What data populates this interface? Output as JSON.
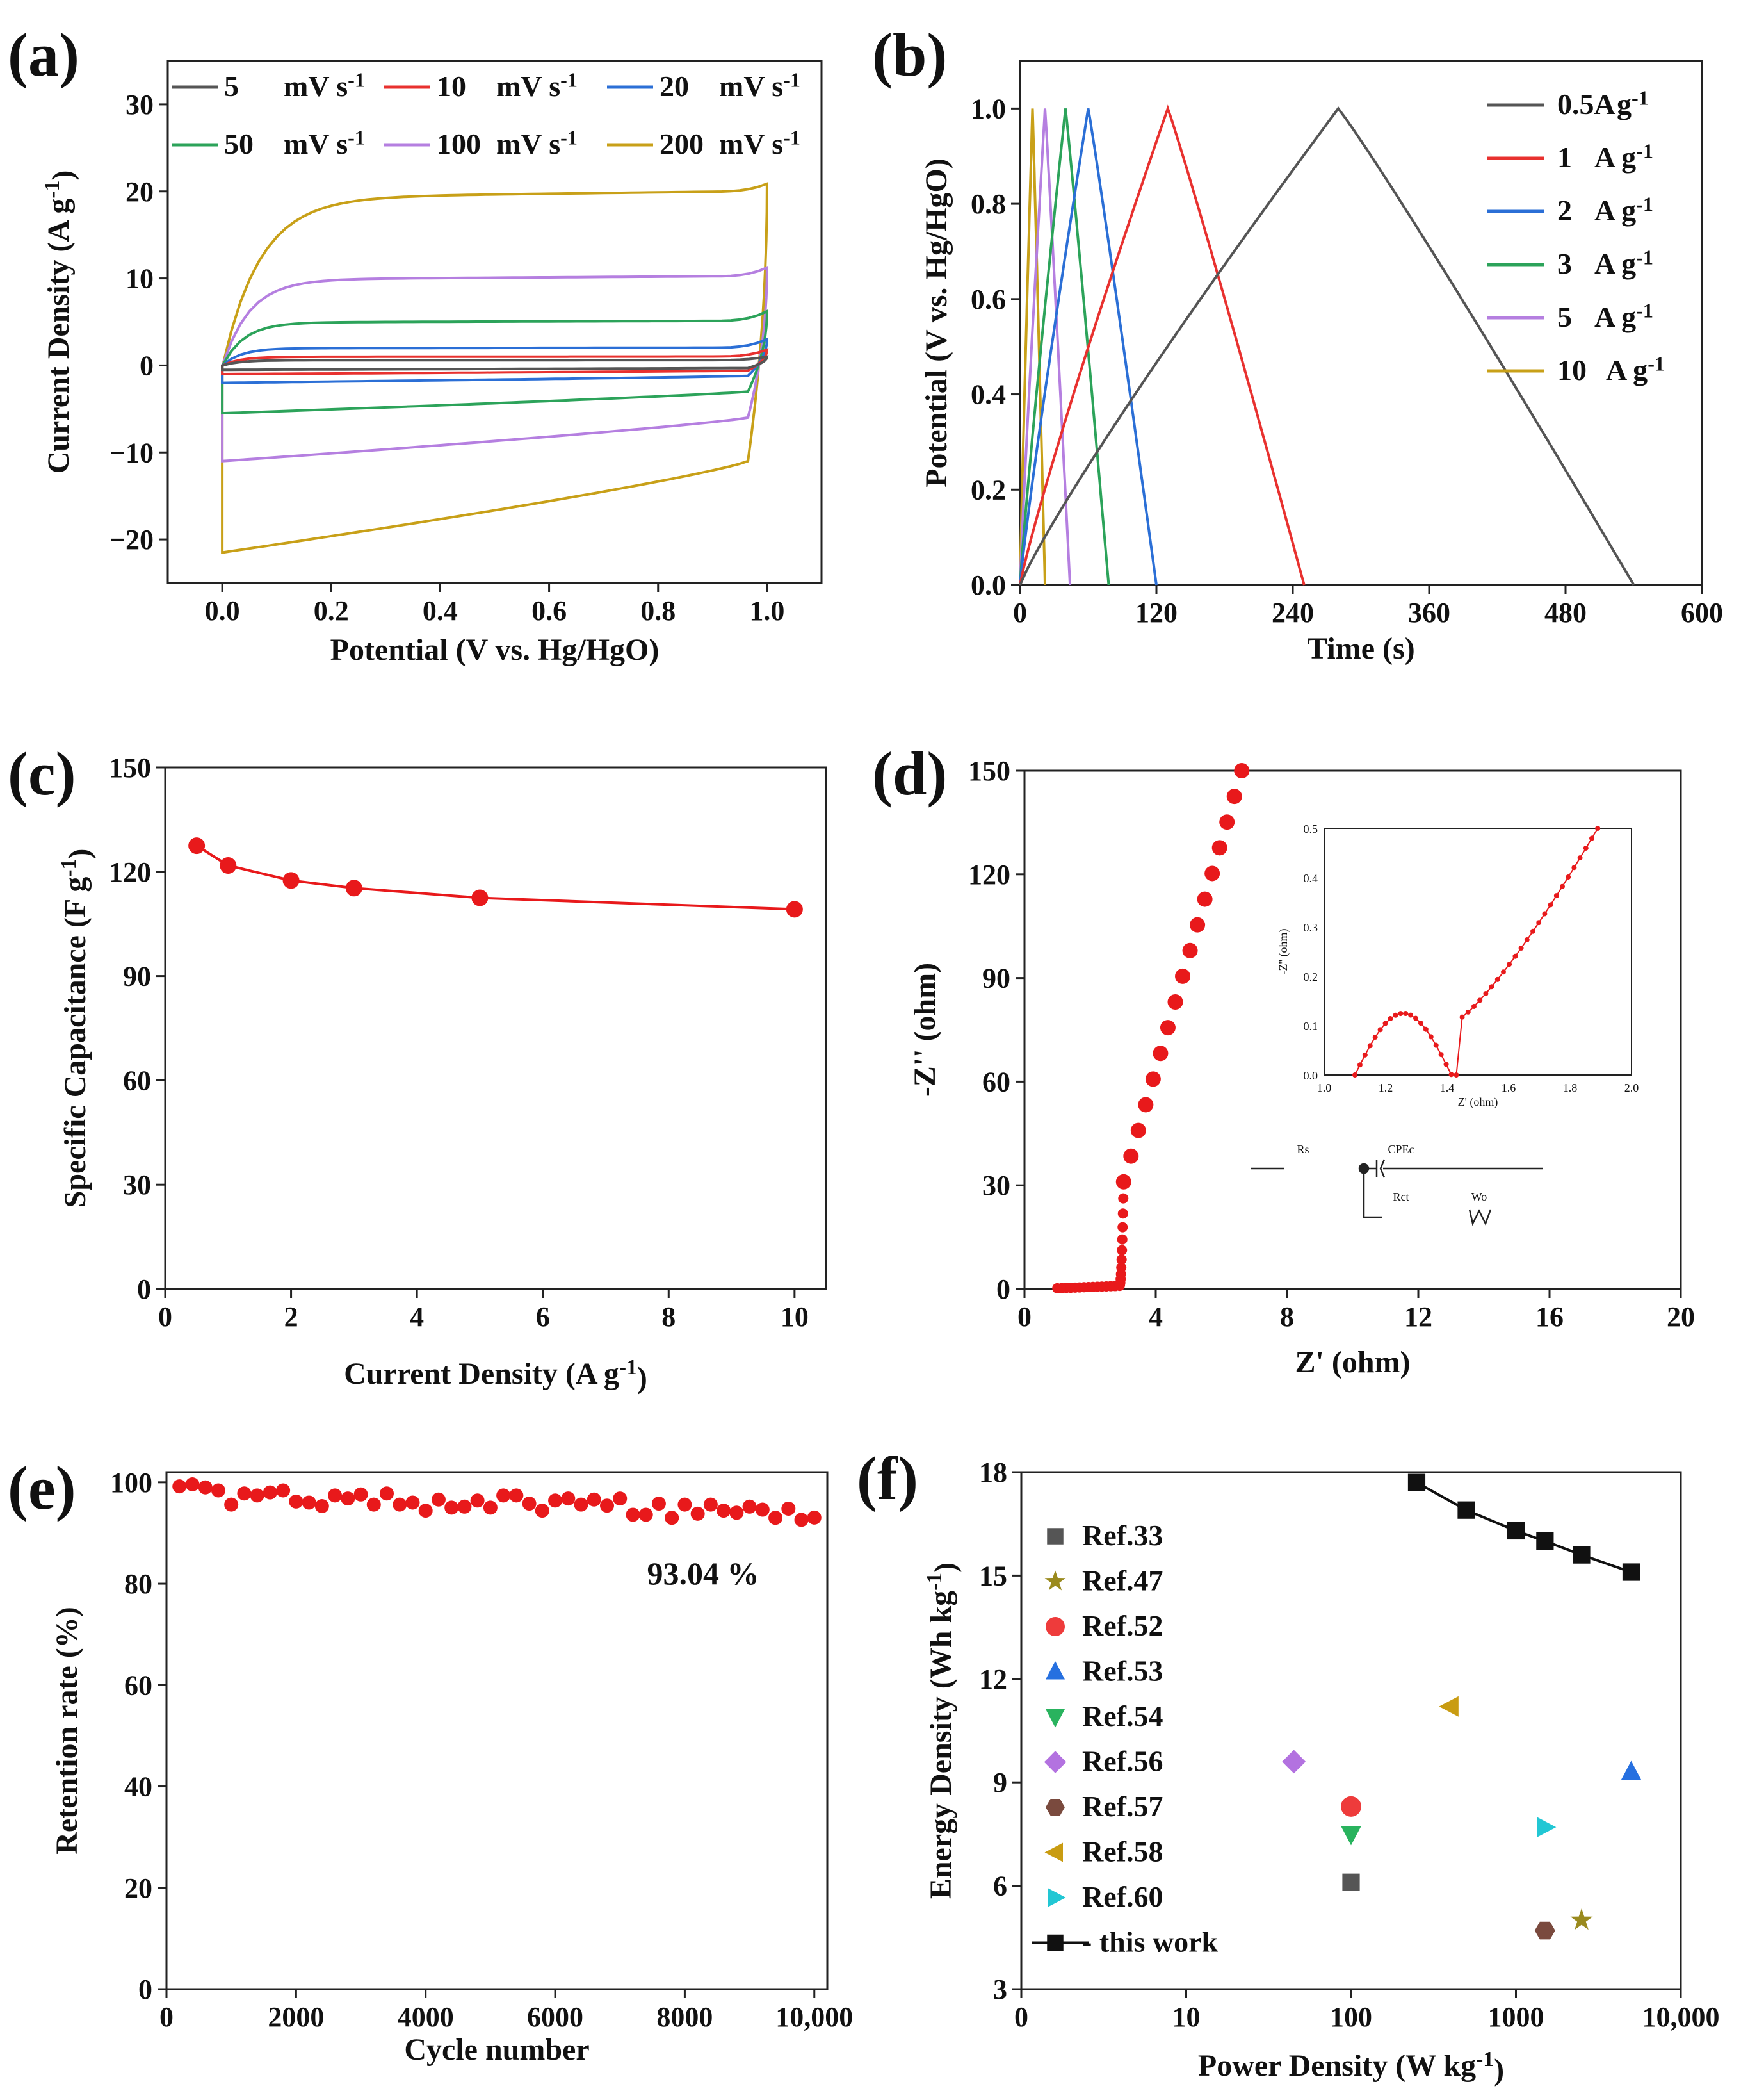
{
  "chart_data": [
    {
      "panel": "(a)",
      "type": "line",
      "xlabel": "Potential (V vs. Hg/HgO)",
      "ylabel": "Current Density (A g⁻¹)",
      "xlim": [
        -0.1,
        1.1
      ],
      "ylim": [
        -25,
        35
      ],
      "xticks": [
        0.0,
        0.2,
        0.4,
        0.6,
        0.8,
        1.0
      ],
      "xtick_labels": [
        "0.0",
        "0.2",
        "0.4",
        "0.6",
        "0.8",
        "1.0"
      ],
      "yticks": [
        -20,
        -10,
        0,
        10,
        20,
        30
      ],
      "ytick_labels": [
        "−20",
        "−10",
        "0",
        "10",
        "20",
        "30"
      ],
      "series": [
        {
          "name": "5 mV s⁻¹",
          "label_value": "5",
          "label_unit": "mV s⁻¹",
          "color": "#555555",
          "anodic": 0.6,
          "cathodic": -0.5,
          "end_hi": 1.0,
          "end_lo": -0.3
        },
        {
          "name": "10 mV s⁻¹",
          "label_value": "10",
          "label_unit": "mV s⁻¹",
          "color": "#e8312f",
          "anodic": 1.0,
          "cathodic": -1.0,
          "end_hi": 1.8,
          "end_lo": -0.6
        },
        {
          "name": "20 mV s⁻¹",
          "label_value": "20",
          "label_unit": "mV s⁻¹",
          "color": "#2b6fd6",
          "anodic": 2.0,
          "cathodic": -2.0,
          "end_hi": 3.0,
          "end_lo": -1.2
        },
        {
          "name": "50 mV s⁻¹",
          "label_value": "50",
          "label_unit": "mV s⁻¹",
          "color": "#2ca35a",
          "anodic": 5.0,
          "cathodic": -5.5,
          "end_hi": 6.2,
          "end_lo": -3.0
        },
        {
          "name": "100 mV s⁻¹",
          "label_value": "100",
          "label_unit": "mV s⁻¹",
          "color": "#b57fe0",
          "anodic": 10.0,
          "cathodic": -11.0,
          "end_hi": 11.2,
          "end_lo": -6.0
        },
        {
          "name": "200 mV s⁻¹",
          "label_value": "200",
          "label_unit": "mV s⁻¹",
          "color": "#c8a018",
          "anodic": 19.5,
          "cathodic": -21.5,
          "end_hi": 20.8,
          "end_lo": -11.0
        }
      ]
    },
    {
      "panel": "(b)",
      "type": "line",
      "xlabel": "Time (s)",
      "ylabel": "Potential (V vs. Hg/HgO)",
      "xlim": [
        0,
        600
      ],
      "ylim": [
        0,
        1.1
      ],
      "xticks": [
        0,
        120,
        240,
        360,
        480,
        600
      ],
      "xtick_labels": [
        "0",
        "120",
        "240",
        "360",
        "480",
        "600"
      ],
      "yticks": [
        0.0,
        0.2,
        0.4,
        0.6,
        0.8,
        1.0
      ],
      "ytick_labels": [
        "0.0",
        "0.2",
        "0.4",
        "0.6",
        "0.8",
        "1.0"
      ],
      "series": [
        {
          "name": "0.5A g⁻¹",
          "label_value": "0.5A",
          "label_unit": "g⁻¹",
          "color": "#555555",
          "t_peak": 280,
          "t_end": 540
        },
        {
          "name": "1 A g⁻¹",
          "label_value": "1",
          "label_unit": "A g⁻¹",
          "color": "#e8312f",
          "t_peak": 130,
          "t_end": 250
        },
        {
          "name": "2 A g⁻¹",
          "label_value": "2",
          "label_unit": "A g⁻¹",
          "color": "#2b6fd6",
          "t_peak": 60,
          "t_end": 120
        },
        {
          "name": "3 A g⁻¹",
          "label_value": "3",
          "label_unit": "A g⁻¹",
          "color": "#2ca35a",
          "t_peak": 40,
          "t_end": 78
        },
        {
          "name": "5 A g⁻¹",
          "label_value": "5",
          "label_unit": "A g⁻¹",
          "color": "#b57fe0",
          "t_peak": 22,
          "t_end": 44
        },
        {
          "name": "10 A g⁻¹",
          "label_value": "10",
          "label_unit": "A g⁻¹",
          "color": "#c8a018",
          "t_peak": 11,
          "t_end": 22
        }
      ]
    },
    {
      "panel": "(c)",
      "type": "line",
      "xlabel": "Current Density (A g⁻¹)",
      "ylabel": "Specific Capacitance (F g⁻¹)",
      "xlim": [
        0,
        10.5
      ],
      "ylim": [
        0,
        150
      ],
      "xticks": [
        0,
        2,
        4,
        6,
        8,
        10
      ],
      "xtick_labels": [
        "0",
        "2",
        "4",
        "6",
        "8",
        "10"
      ],
      "yticks": [
        0,
        30,
        60,
        90,
        120,
        150
      ],
      "ytick_labels": [
        "0",
        "30",
        "60",
        "90",
        "120",
        "150"
      ],
      "x": [
        0.5,
        1,
        2,
        3,
        5,
        10
      ],
      "values": [
        127.5,
        121.8,
        117.5,
        115.3,
        112.5,
        109.2
      ],
      "color": "#e8191b"
    },
    {
      "panel": "(d)",
      "type": "scatter",
      "xlabel": "Z' (ohm)",
      "ylabel": "-Z'' (ohm)",
      "xlim": [
        0,
        20
      ],
      "ylim": [
        0,
        150
      ],
      "xticks": [
        0,
        4,
        8,
        12,
        16,
        20
      ],
      "xtick_labels": [
        "0",
        "4",
        "8",
        "12",
        "16",
        "20"
      ],
      "yticks": [
        0,
        30,
        60,
        90,
        120,
        150
      ],
      "ytick_labels": [
        "0",
        "30",
        "60",
        "90",
        "120",
        "150"
      ],
      "color": "#e8191b",
      "inset": {
        "xlabel": "Z' (ohm)",
        "ylabel": "-Z'' (ohm)",
        "xlim": [
          1.0,
          2.0
        ],
        "ylim": [
          0.0,
          0.5
        ],
        "xticks": [
          1.0,
          1.2,
          1.4,
          1.6,
          1.8,
          2.0
        ],
        "xtick_labels": [
          "1.0",
          "1.2",
          "1.4",
          "1.6",
          "1.8",
          "2.0"
        ],
        "yticks": [
          0.0,
          0.1,
          0.2,
          0.3,
          0.4,
          0.5
        ],
        "ytick_labels": [
          "0.0",
          "0.1",
          "0.2",
          "0.3",
          "0.4",
          "0.5"
        ]
      },
      "circuit_labels": [
        "Rs",
        "CPEc",
        "Rct",
        "Wo"
      ]
    },
    {
      "panel": "(e)",
      "type": "scatter",
      "xlabel": "Cycle number",
      "ylabel": "Retention rate (%)",
      "xlim": [
        0,
        10200
      ],
      "ylim": [
        0,
        102
      ],
      "xticks": [
        0,
        2000,
        4000,
        6000,
        8000,
        10000
      ],
      "xtick_labels": [
        "0",
        "2000",
        "4000",
        "6000",
        "8000",
        "10,000"
      ],
      "yticks": [
        0,
        20,
        40,
        60,
        80,
        100
      ],
      "ytick_labels": [
        "0",
        "20",
        "40",
        "60",
        "80",
        "100"
      ],
      "annotation": "93.04 %",
      "color": "#e8191b",
      "x": [
        200,
        400,
        600,
        800,
        1000,
        1200,
        1400,
        1600,
        1800,
        2000,
        2200,
        2400,
        2600,
        2800,
        3000,
        3200,
        3400,
        3600,
        3800,
        4000,
        4200,
        4400,
        4600,
        4800,
        5000,
        5200,
        5400,
        5600,
        5800,
        6000,
        6200,
        6400,
        6600,
        6800,
        7000,
        7200,
        7400,
        7600,
        7800,
        8000,
        8200,
        8400,
        8600,
        8800,
        9000,
        9200,
        9400,
        9600,
        9800,
        10000
      ],
      "values": [
        99.2,
        99.6,
        99.0,
        98.4,
        95.6,
        97.8,
        97.4,
        98.0,
        98.4,
        96.2,
        96.0,
        95.3,
        97.4,
        96.8,
        97.6,
        95.6,
        97.8,
        95.6,
        96.0,
        94.4,
        96.6,
        95.0,
        95.2,
        96.4,
        95.0,
        97.4,
        97.4,
        95.8,
        94.4,
        96.4,
        96.8,
        95.6,
        96.6,
        95.4,
        96.8,
        93.6,
        93.6,
        95.8,
        93.0,
        95.6,
        93.8,
        95.6,
        94.4,
        94.0,
        95.2,
        94.6,
        93.0,
        94.8,
        92.6,
        93.04
      ]
    },
    {
      "panel": "(f)",
      "type": "scatter",
      "xlabel": "Power Density (W kg⁻¹)",
      "ylabel": "Energy Density (Wh kg⁻¹)",
      "xscale": "log",
      "xlim": [
        1,
        10000
      ],
      "ylim": [
        3,
        18
      ],
      "xticks": [
        1,
        10,
        100,
        1000,
        10000
      ],
      "xtick_labels": [
        "0",
        "10",
        "100",
        "1000",
        "10,000"
      ],
      "yticks": [
        3,
        6,
        9,
        12,
        15,
        18
      ],
      "ytick_labels": [
        "3",
        "6",
        "9",
        "12",
        "15",
        "18"
      ],
      "series": [
        {
          "name": "Ref.33",
          "marker": "square",
          "color": "#555555",
          "x": [
            100
          ],
          "values": [
            6.1
          ]
        },
        {
          "name": "Ref.47",
          "marker": "star",
          "color": "#9a8a1e",
          "x": [
            2500
          ],
          "values": [
            5.0
          ]
        },
        {
          "name": "Ref.52",
          "marker": "circle",
          "color": "#ee3b3b",
          "x": [
            100
          ],
          "values": [
            8.3
          ]
        },
        {
          "name": "Ref.53",
          "marker": "triangle-up",
          "color": "#2670e0",
          "x": [
            5000
          ],
          "values": [
            9.3
          ]
        },
        {
          "name": "Ref.54",
          "marker": "triangle-down",
          "color": "#29b35e",
          "x": [
            100
          ],
          "values": [
            7.5
          ]
        },
        {
          "name": "Ref.56",
          "marker": "diamond",
          "color": "#b372e0",
          "x": [
            45
          ],
          "values": [
            9.6
          ]
        },
        {
          "name": "Ref.57",
          "marker": "hexagon",
          "color": "#7a4a3e",
          "x": [
            1500
          ],
          "values": [
            4.7
          ]
        },
        {
          "name": "Ref.58",
          "marker": "triangle-left",
          "color": "#c99c12",
          "x": [
            400
          ],
          "values": [
            11.2
          ]
        },
        {
          "name": "Ref.60",
          "marker": "triangle-right",
          "color": "#22c7d4",
          "x": [
            1500
          ],
          "values": [
            7.7
          ]
        },
        {
          "name": "this work",
          "marker": "square-line",
          "color": "#111111",
          "x": [
            250,
            500,
            1000,
            1500,
            2500,
            5000
          ],
          "values": [
            17.7,
            16.9,
            16.3,
            16.0,
            15.6,
            15.1
          ]
        }
      ]
    }
  ]
}
